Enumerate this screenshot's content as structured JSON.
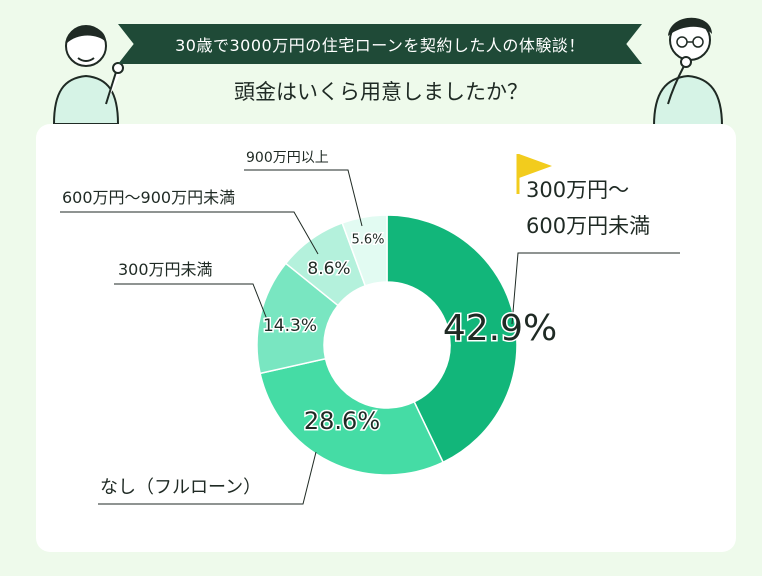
{
  "header": {
    "banner": "30歳で3000万円の住宅ローンを契約した人の体験談！",
    "question": "頭金はいくら用意しましたか？"
  },
  "colors": {
    "background": "#eefaeb",
    "banner": "#1f4a37",
    "flag": "#f2cc1d"
  },
  "chart_data": {
    "type": "pie",
    "donut": true,
    "slices": [
      {
        "label": "300万円〜600万円未満",
        "label_lines": [
          "300万円〜",
          "600万円未満"
        ],
        "value": 42.9,
        "display": "42.9%",
        "color": "#12b67a"
      },
      {
        "label": "なし（フルローン）",
        "label_lines": [
          "なし（フルローン）"
        ],
        "value": 28.6,
        "display": "28.6%",
        "color": "#45dca5"
      },
      {
        "label": "300万円未満",
        "label_lines": [
          "300万円未満"
        ],
        "value": 14.3,
        "display": "14.3%",
        "color": "#79e6c1"
      },
      {
        "label": "600万円〜900万円未満",
        "label_lines": [
          "600万円〜900万円未満"
        ],
        "value": 8.6,
        "display": "8.6%",
        "color": "#b4f1dc"
      },
      {
        "label": "900万円以上",
        "label_lines": [
          "900万円以上"
        ],
        "value": 5.6,
        "display": "5.6%",
        "color": "#e2fbf2"
      }
    ]
  }
}
